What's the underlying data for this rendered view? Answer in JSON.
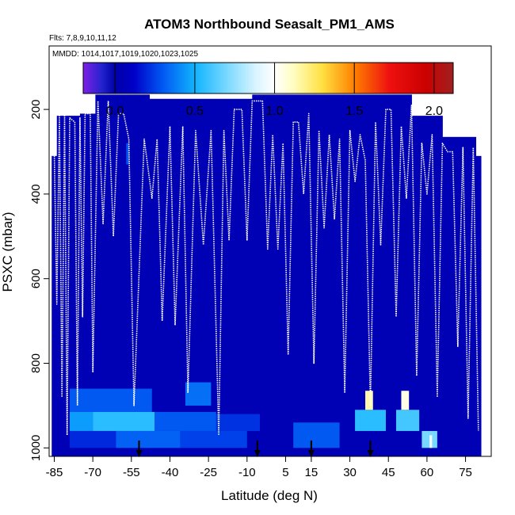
{
  "chart_data": {
    "type": "heatmap",
    "title": "ATOM3 Northbound Seasalt_PM1_AMS",
    "flights_label": "Flts: 7,8,9,10,11,12",
    "dates_label": "MMDD: 1014,1017,1019,1020,1023,1025",
    "xlabel": "Latitude (deg N)",
    "ylabel": "PSXC (mbar)",
    "xlim": [
      -87,
      85
    ],
    "ylim": [
      1020,
      50
    ],
    "x_ticks": [
      -85,
      -70,
      -55,
      -40,
      -25,
      -10,
      5,
      15,
      30,
      45,
      60,
      75
    ],
    "x_tick_labels": [
      "-85",
      "-70",
      "-55",
      "-40",
      "-25",
      "-10",
      "5",
      "15",
      "30",
      "45",
      "60",
      "75"
    ],
    "y_ticks": [
      200,
      400,
      600,
      800,
      1000
    ],
    "y_tick_labels": [
      "200",
      "400",
      "600",
      "800",
      "1000"
    ],
    "colorbar": {
      "range": [
        -0.2,
        2.12
      ],
      "ticks": [
        0.0,
        0.5,
        1.0,
        1.5,
        2.0
      ],
      "tick_labels": [
        "0.0",
        "0.5",
        "1.0",
        "1.5",
        "2.0"
      ],
      "stops": [
        {
          "v": -0.2,
          "c": "#7f1fe6"
        },
        {
          "v": -0.08,
          "c": "#2222cc"
        },
        {
          "v": 0.0,
          "c": "#0000a8"
        },
        {
          "v": 0.12,
          "c": "#0000c8"
        },
        {
          "v": 0.28,
          "c": "#0050f0"
        },
        {
          "v": 0.5,
          "c": "#10b4ff"
        },
        {
          "v": 0.7,
          "c": "#78d8ff"
        },
        {
          "v": 0.88,
          "c": "#d8f4ff"
        },
        {
          "v": 1.0,
          "c": "#ffffff"
        },
        {
          "v": 1.12,
          "c": "#fffdc0"
        },
        {
          "v": 1.3,
          "c": "#ffe040"
        },
        {
          "v": 1.5,
          "c": "#ff8000"
        },
        {
          "v": 1.72,
          "c": "#ee1010"
        },
        {
          "v": 1.95,
          "c": "#cc0000"
        },
        {
          "v": 2.12,
          "c": "#a02020"
        }
      ]
    },
    "background_value": 0.05,
    "coverage": [
      {
        "x0": -86,
        "x1": -84,
        "p": 310
      },
      {
        "x0": -84,
        "x1": -75,
        "p": 215
      },
      {
        "x0": -75,
        "x1": -69,
        "p": 210
      },
      {
        "x0": -69,
        "x1": -48,
        "p": 165
      },
      {
        "x0": -48,
        "x1": -8,
        "p": 175
      },
      {
        "x0": -8,
        "x1": 54,
        "p": 165
      },
      {
        "x0": 54,
        "x1": 66,
        "p": 215
      },
      {
        "x0": 66,
        "x1": 79,
        "p": 265
      },
      {
        "x0": 79,
        "x1": 81,
        "p": 310
      }
    ],
    "patches": [
      {
        "x0": -79,
        "x1": -47,
        "p0": 860,
        "p1": 915,
        "value": 0.3
      },
      {
        "x0": -34,
        "x1": -24,
        "p0": 845,
        "p1": 900,
        "value": 0.35
      },
      {
        "x0": -79,
        "x1": -70,
        "p0": 915,
        "p1": 960,
        "value": 0.45
      },
      {
        "x0": -70,
        "x1": -46,
        "p0": 915,
        "p1": 960,
        "value": 0.55
      },
      {
        "x0": -46,
        "x1": -22,
        "p0": 915,
        "p1": 960,
        "value": 0.3
      },
      {
        "x0": -22,
        "x1": -5,
        "p0": 920,
        "p1": 960,
        "value": 0.22
      },
      {
        "x0": -79,
        "x1": -61,
        "p0": 960,
        "p1": 1000,
        "value": 0.2
      },
      {
        "x0": -61,
        "x1": -36,
        "p0": 960,
        "p1": 1000,
        "value": 0.32
      },
      {
        "x0": -36,
        "x1": -10,
        "p0": 960,
        "p1": 1000,
        "value": 0.25
      },
      {
        "x0": 8,
        "x1": 26,
        "p0": 940,
        "p1": 1000,
        "value": 0.3
      },
      {
        "x0": 32,
        "x1": 44,
        "p0": 910,
        "p1": 960,
        "value": 0.55
      },
      {
        "x0": 36,
        "x1": 39,
        "p0": 865,
        "p1": 910,
        "value": 1.15
      },
      {
        "x0": 48,
        "x1": 57,
        "p0": 910,
        "p1": 960,
        "value": 0.6
      },
      {
        "x0": 50,
        "x1": 53,
        "p0": 865,
        "p1": 910,
        "value": 1.05
      },
      {
        "x0": 58,
        "x1": 64,
        "p0": 960,
        "p1": 1000,
        "value": 0.7
      },
      {
        "x0": 61,
        "x1": 62,
        "p0": 970,
        "p1": 1000,
        "value": 0.95
      },
      {
        "x0": -57,
        "x1": -56,
        "p0": 280,
        "p1": 330,
        "value": 0.3
      }
    ],
    "arrows_lat": [
      -52,
      -6,
      15,
      38
    ],
    "flight_track": [
      [
        -85,
        300
      ],
      [
        -84,
        660
      ],
      [
        -83,
        215
      ],
      [
        -82,
        880
      ],
      [
        -81,
        215
      ],
      [
        -80,
        970
      ],
      [
        -79,
        220
      ],
      [
        -77,
        230
      ],
      [
        -76,
        900
      ],
      [
        -75,
        220
      ],
      [
        -74,
        690
      ],
      [
        -73,
        210
      ],
      [
        -71,
        210
      ],
      [
        -70,
        820
      ],
      [
        -68,
        180
      ],
      [
        -66,
        470
      ],
      [
        -64,
        180
      ],
      [
        -62,
        500
      ],
      [
        -60,
        210
      ],
      [
        -58,
        210
      ],
      [
        -56,
        270
      ],
      [
        -54,
        900
      ],
      [
        -50,
        270
      ],
      [
        -47,
        410
      ],
      [
        -45,
        270
      ],
      [
        -43,
        700
      ],
      [
        -40,
        240
      ],
      [
        -38,
        710
      ],
      [
        -35,
        240
      ],
      [
        -33,
        870
      ],
      [
        -30,
        250
      ],
      [
        -27,
        520
      ],
      [
        -24,
        250
      ],
      [
        -21,
        970
      ],
      [
        -19,
        250
      ],
      [
        -17,
        510
      ],
      [
        -15,
        200
      ],
      [
        -12,
        200
      ],
      [
        -10,
        510
      ],
      [
        -8,
        180
      ],
      [
        -4,
        180
      ],
      [
        -2,
        530
      ],
      [
        0,
        260
      ],
      [
        2,
        530
      ],
      [
        4,
        280
      ],
      [
        6,
        780
      ],
      [
        8,
        230
      ],
      [
        10,
        230
      ],
      [
        12,
        400
      ],
      [
        14,
        210
      ],
      [
        16,
        800
      ],
      [
        18,
        250
      ],
      [
        20,
        480
      ],
      [
        22,
        260
      ],
      [
        24,
        460
      ],
      [
        26,
        270
      ],
      [
        28,
        870
      ],
      [
        30,
        250
      ],
      [
        32,
        370
      ],
      [
        34,
        260
      ],
      [
        36,
        320
      ],
      [
        38,
        900
      ],
      [
        40,
        230
      ],
      [
        42,
        520
      ],
      [
        44,
        200
      ],
      [
        46,
        200
      ],
      [
        48,
        690
      ],
      [
        50,
        240
      ],
      [
        52,
        410
      ],
      [
        54,
        190
      ],
      [
        56,
        830
      ],
      [
        58,
        280
      ],
      [
        60,
        400
      ],
      [
        62,
        260
      ],
      [
        64,
        880
      ],
      [
        66,
        280
      ],
      [
        68,
        300
      ],
      [
        70,
        300
      ],
      [
        72,
        760
      ],
      [
        74,
        290
      ],
      [
        76,
        930
      ],
      [
        78,
        290
      ],
      [
        80,
        960
      ]
    ]
  }
}
